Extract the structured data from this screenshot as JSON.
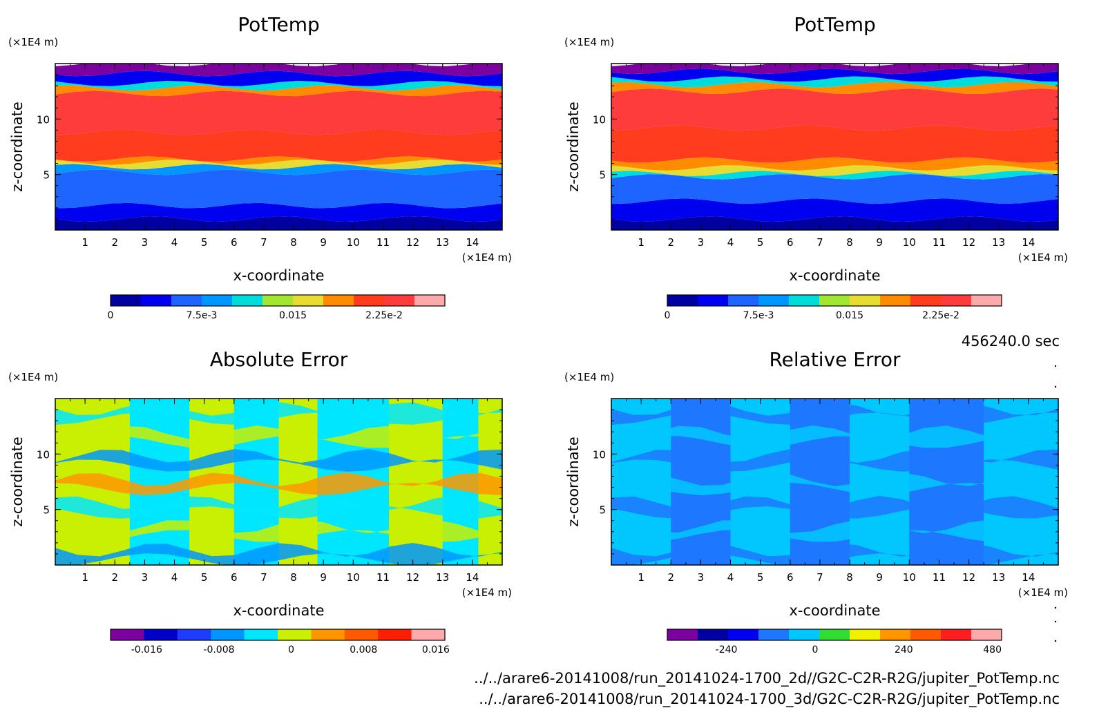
{
  "chart_data": [
    {
      "type": "heatmap",
      "title": "PotTemp",
      "xlabel": "x-coordinate",
      "ylabel": "z-coordinate",
      "x_unit": "(×1E4 m)",
      "z_unit": "(×1E4 m)",
      "x_ticks": [
        "1",
        "2",
        "3",
        "4",
        "5",
        "6",
        "7",
        "8",
        "9",
        "10",
        "11",
        "12",
        "13",
        "14"
      ],
      "z_ticks": [
        "5",
        "10"
      ],
      "xlim": [
        0,
        15
      ],
      "zlim": [
        0,
        15
      ],
      "colorbar": {
        "colors": [
          "#0000a0",
          "#0000f0",
          "#1e64ff",
          "#0096ff",
          "#00dcdc",
          "#a0e632",
          "#e6dc32",
          "#ff8c00",
          "#ff3c1e",
          "#ff3c3c",
          "#ffaaaa"
        ],
        "tick_labels": [
          "0",
          "7.5e-3",
          "0.015",
          "2.25e-2"
        ],
        "tick_values": [
          0,
          0.0075,
          0.015,
          0.0225
        ],
        "range": [
          0,
          0.0275
        ]
      },
      "bands": [
        {
          "from": 0,
          "to": 1,
          "color": "#0000a0"
        },
        {
          "from": 1,
          "to": 2.2,
          "color": "#0000f0"
        },
        {
          "from": 2.2,
          "to": 5.2,
          "color": "#1e64ff"
        },
        {
          "from": 5.2,
          "to": 5.7,
          "color": "#0096ff"
        },
        {
          "from": 5.7,
          "to": 6.1,
          "color": "#e6dc32"
        },
        {
          "from": 6.1,
          "to": 6.4,
          "color": "#ff8c00"
        },
        {
          "from": 6.4,
          "to": 8.8,
          "color": "#ff3c1e"
        },
        {
          "from": 8.8,
          "to": 12.3,
          "color": "#ff3c3c"
        },
        {
          "from": 12.3,
          "to": 12.8,
          "color": "#ff8c00"
        },
        {
          "from": 12.8,
          "to": 13.2,
          "color": "#00dcdc"
        },
        {
          "from": 13.2,
          "to": 14.1,
          "color": "#0000f0"
        },
        {
          "from": 14.1,
          "to": 15,
          "color": "#7d00a0"
        }
      ]
    },
    {
      "type": "heatmap",
      "title": "PotTemp",
      "xlabel": "x-coordinate",
      "ylabel": "z-coordinate",
      "x_unit": "(×1E4 m)",
      "z_unit": "(×1E4 m)",
      "x_ticks": [
        "1",
        "2",
        "3",
        "4",
        "5",
        "6",
        "7",
        "8",
        "9",
        "10",
        "11",
        "12",
        "13",
        "14"
      ],
      "z_ticks": [
        "5",
        "10"
      ],
      "xlim": [
        0,
        15
      ],
      "zlim": [
        0,
        15
      ],
      "colorbar": {
        "colors": [
          "#0000a0",
          "#0000f0",
          "#1e64ff",
          "#0096ff",
          "#00dcdc",
          "#a0e632",
          "#e6dc32",
          "#ff8c00",
          "#ff3c1e",
          "#ff3c3c",
          "#ffaaaa"
        ],
        "tick_labels": [
          "0",
          "7.5e-3",
          "0.015",
          "2.25e-2"
        ],
        "tick_values": [
          0,
          0.0075,
          0.015,
          0.0225
        ],
        "range": [
          0,
          0.0275
        ]
      },
      "bands": [
        {
          "from": 0,
          "to": 1,
          "color": "#0000a0"
        },
        {
          "from": 1,
          "to": 2.6,
          "color": "#0000f0"
        },
        {
          "from": 2.6,
          "to": 4.8,
          "color": "#1e64ff"
        },
        {
          "from": 4.8,
          "to": 5.1,
          "color": "#00dcdc"
        },
        {
          "from": 5.1,
          "to": 5.6,
          "color": "#e6dc32"
        },
        {
          "from": 5.6,
          "to": 6.3,
          "color": "#ff8c00"
        },
        {
          "from": 6.3,
          "to": 9.2,
          "color": "#ff3c1e"
        },
        {
          "from": 9.2,
          "to": 12.5,
          "color": "#ff3c3c"
        },
        {
          "from": 12.5,
          "to": 13.1,
          "color": "#ff8c00"
        },
        {
          "from": 13.1,
          "to": 13.6,
          "color": "#00dcdc"
        },
        {
          "from": 13.6,
          "to": 14.3,
          "color": "#0000f0"
        },
        {
          "from": 14.3,
          "to": 15,
          "color": "#7d00a0"
        }
      ]
    },
    {
      "type": "heatmap",
      "title": "Absolute Error",
      "xlabel": "x-coordinate",
      "ylabel": "z-coordinate",
      "x_unit": "(×1E4 m)",
      "z_unit": "(×1E4 m)",
      "x_ticks": [
        "1",
        "2",
        "3",
        "4",
        "5",
        "6",
        "7",
        "8",
        "9",
        "10",
        "11",
        "12",
        "13",
        "14"
      ],
      "z_ticks": [
        "5",
        "10"
      ],
      "xlim": [
        0,
        15
      ],
      "zlim": [
        0,
        15
      ],
      "colorbar": {
        "colors": [
          "#7d00a0",
          "#0000c8",
          "#1e3cff",
          "#0096ff",
          "#00e6ff",
          "#c8f000",
          "#ff9600",
          "#ff5a00",
          "#ff1e00",
          "#ffaaaa"
        ],
        "tick_labels": [
          "-0.016",
          "-0.008",
          "0",
          "0.008",
          "0.016"
        ],
        "tick_values": [
          -0.016,
          -0.008,
          0,
          0.008,
          0.016
        ],
        "range": [
          -0.02,
          0.017
        ]
      },
      "bands": [
        {
          "from": 0,
          "to": 2.5,
          "color": "#c8f000"
        },
        {
          "from": 2.5,
          "to": 4.5,
          "color": "#00e6ff"
        },
        {
          "from": 4.5,
          "to": 6.0,
          "color": "#c8f000"
        },
        {
          "from": 6.0,
          "to": 7.5,
          "color": "#00e6ff"
        },
        {
          "from": 7.5,
          "to": 8.8,
          "color": "#c8f000"
        },
        {
          "from": 8.8,
          "to": 11.2,
          "color": "#00e6ff"
        },
        {
          "from": 11.2,
          "to": 13.0,
          "color": "#c8f000"
        },
        {
          "from": 13.0,
          "to": 14.2,
          "color": "#00e6ff"
        },
        {
          "from": 14.2,
          "to": 15,
          "color": "#c8f000"
        }
      ]
    },
    {
      "type": "heatmap",
      "title": "Relative Error",
      "xlabel": "x-coordinate",
      "ylabel": "z-coordinate",
      "x_unit": "(×1E4 m)",
      "z_unit": "(×1E4 m)",
      "x_ticks": [
        "1",
        "2",
        "3",
        "4",
        "5",
        "6",
        "7",
        "8",
        "9",
        "10",
        "11",
        "12",
        "13",
        "14"
      ],
      "z_ticks": [
        "5",
        "10"
      ],
      "xlim": [
        0,
        15
      ],
      "zlim": [
        0,
        15
      ],
      "colorbar": {
        "colors": [
          "#7d00a0",
          "#0000a0",
          "#0000f0",
          "#1e78ff",
          "#00c8ff",
          "#32dc32",
          "#f0f000",
          "#ff9600",
          "#ff5a00",
          "#ff1e1e",
          "#ffaaaa"
        ],
        "tick_labels": [
          "-240",
          "0",
          "240",
          "480"
        ],
        "tick_values": [
          -240,
          0,
          240,
          480
        ],
        "range": [
          -400,
          505
        ]
      },
      "bands": [
        {
          "from": 0,
          "to": 2.0,
          "color": "#00c8ff"
        },
        {
          "from": 2.0,
          "to": 4.0,
          "color": "#1e78ff"
        },
        {
          "from": 4.0,
          "to": 6.0,
          "color": "#00c8ff"
        },
        {
          "from": 6.0,
          "to": 8.0,
          "color": "#1e78ff"
        },
        {
          "from": 8.0,
          "to": 10.0,
          "color": "#00c8ff"
        },
        {
          "from": 10.0,
          "to": 12.5,
          "color": "#1e78ff"
        },
        {
          "from": 12.5,
          "to": 15,
          "color": "#00c8ff"
        }
      ]
    }
  ],
  "time_label": "456240.0 sec",
  "footer": [
    "../../arare6-20141008/run_20141024-1700_2d//G2C-C2R-R2G/jupiter_PotTemp.nc",
    "../../arare6-20141008/run_20141024-1700_3d/G2C-C2R-R2G/jupiter_PotTemp.nc"
  ]
}
